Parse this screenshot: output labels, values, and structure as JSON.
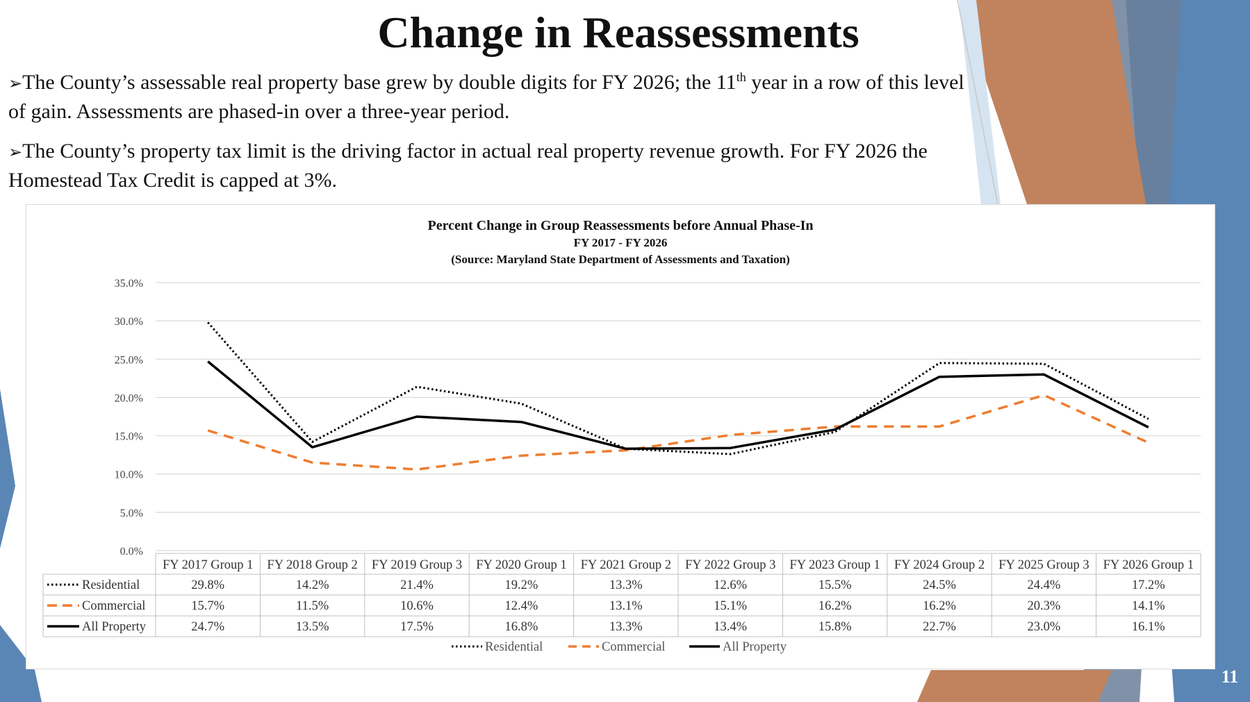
{
  "slide": {
    "title": "Change in Reassessments",
    "bullet1_pre": "The County’s assessable real property base grew by double digits for FY 2026; the 11",
    "bullet1_sup": "th",
    "bullet1_post": " year in a row of this level of gain. Assessments are phased-in over a three-year period.",
    "bullet2": "The County’s property tax limit is the driving factor in actual real property revenue growth. For FY 2026 the Homestead Tax Credit is capped at 3%.",
    "bullet_marker": "➢",
    "page_number": "11"
  },
  "colors": {
    "accent_orange": "#c0835d",
    "accent_blue": "#5a86b5",
    "accent_slate": "#6b7f99",
    "residential": "#000000",
    "commercial": "#ed7d31",
    "all_property": "#000000"
  },
  "chart_data": {
    "type": "line",
    "title": "Percent Change in Group Reassessments before Annual Phase-In",
    "subtitle": "FY 2017 - FY 2026",
    "source": "(Source: Maryland State Department of Assessments and Taxation)",
    "categories": [
      "FY 2017 Group 1",
      "FY 2018 Group 2",
      "FY 2019 Group 3",
      "FY 2020 Group 1",
      "FY 2021 Group 2",
      "FY 2022 Group 3",
      "FY 2023 Group 1",
      "FY 2024 Group 2",
      "FY 2025 Group 3",
      "FY 2026 Group 1"
    ],
    "series": [
      {
        "name": "Residential",
        "style": "dotted",
        "values": [
          29.8,
          14.2,
          21.4,
          19.2,
          13.3,
          12.6,
          15.5,
          24.5,
          24.4,
          17.2
        ],
        "labels": [
          "29.8%",
          "14.2%",
          "21.4%",
          "19.2%",
          "13.3%",
          "12.6%",
          "15.5%",
          "24.5%",
          "24.4%",
          "17.2%"
        ]
      },
      {
        "name": "Commercial",
        "style": "dashed",
        "values": [
          15.7,
          11.5,
          10.6,
          12.4,
          13.1,
          15.1,
          16.2,
          16.2,
          20.3,
          14.1
        ],
        "labels": [
          "15.7%",
          "11.5%",
          "10.6%",
          "12.4%",
          "13.1%",
          "15.1%",
          "16.2%",
          "16.2%",
          "20.3%",
          "14.1%"
        ]
      },
      {
        "name": "All Property",
        "style": "solid",
        "values": [
          24.7,
          13.5,
          17.5,
          16.8,
          13.3,
          13.4,
          15.8,
          22.7,
          23.0,
          16.1
        ],
        "labels": [
          "24.7%",
          "13.5%",
          "17.5%",
          "16.8%",
          "13.3%",
          "13.4%",
          "15.8%",
          "22.7%",
          "23.0%",
          "16.1%"
        ]
      }
    ],
    "yticks": [
      "0.0%",
      "5.0%",
      "10.0%",
      "15.0%",
      "20.0%",
      "25.0%",
      "30.0%",
      "35.0%"
    ],
    "ylim": [
      0,
      35
    ],
    "grid": true,
    "legend": "bottom",
    "data_table": true
  }
}
